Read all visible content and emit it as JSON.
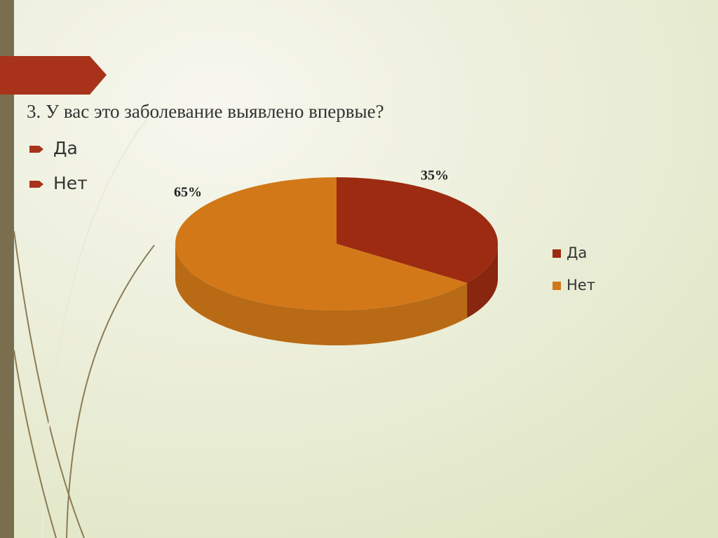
{
  "chart_data": {
    "type": "pie",
    "title": "3. У вас это заболевание выявлено впервые?",
    "categories": [
      "Да",
      "Нет"
    ],
    "values": [
      35,
      65
    ],
    "value_labels": [
      "35%",
      "65%"
    ],
    "colors": [
      "#9c2b11",
      "#d27818"
    ],
    "legend": "right"
  },
  "bullets": [
    "Да",
    "Нет"
  ]
}
